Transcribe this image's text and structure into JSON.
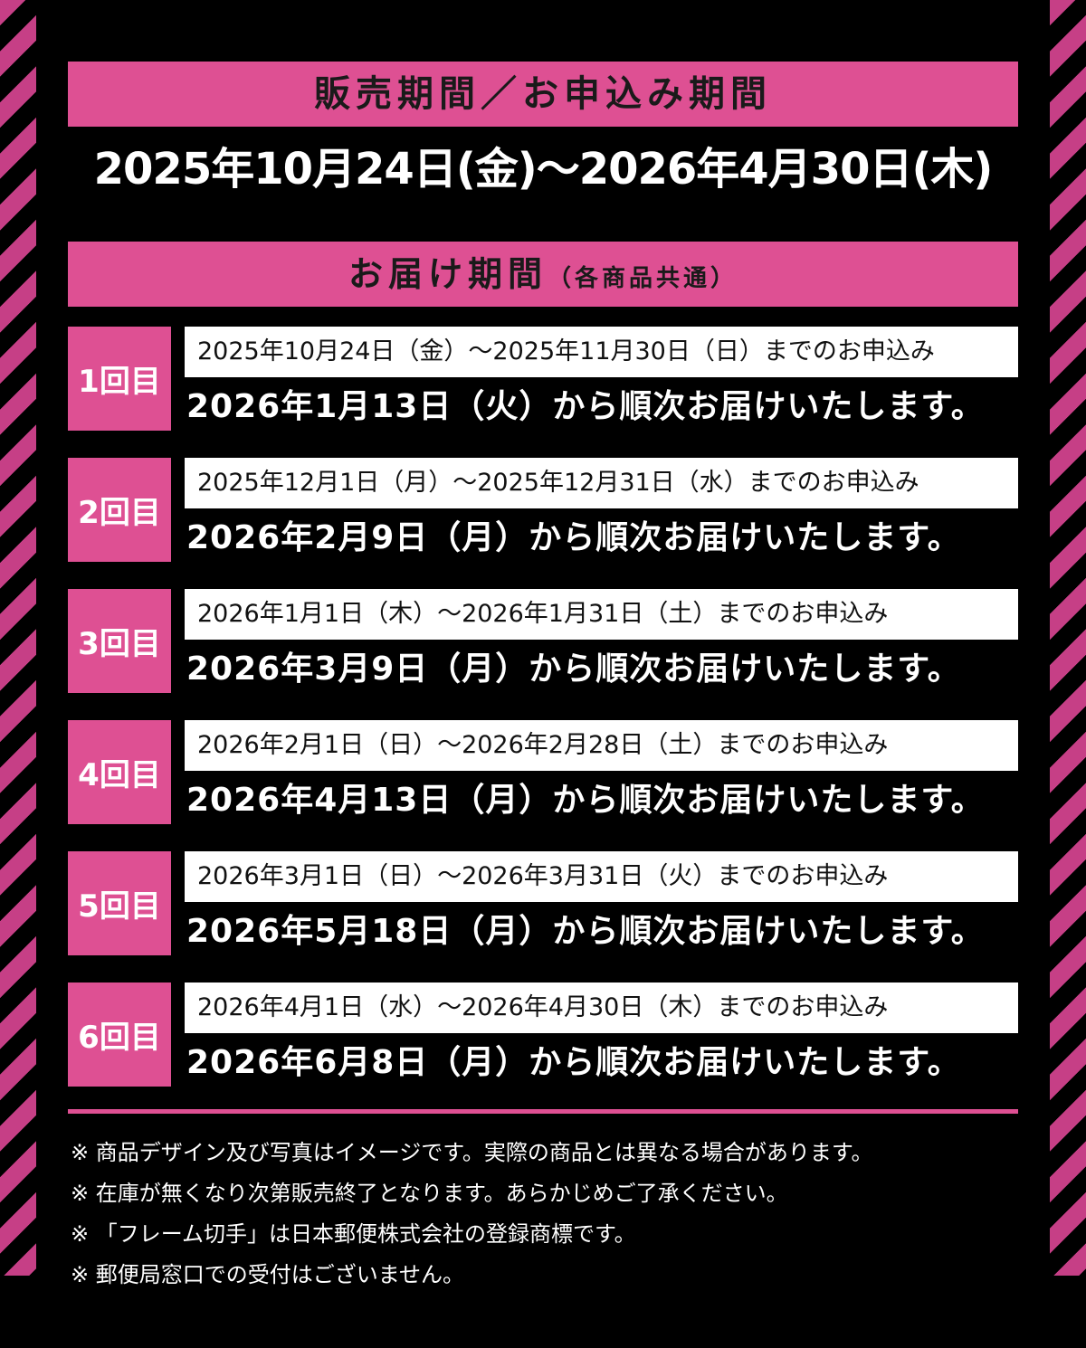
{
  "sales": {
    "heading": "販売期間／お申込み期間",
    "period": "2025年10月24日(金)〜2026年4月30日(木)"
  },
  "delivery": {
    "heading": "お届け期間",
    "heading_note": "（各商品共通）",
    "rows": [
      {
        "label": "1回目",
        "apply": "2025年10月24日（金）〜2025年11月30日（日）までのお申込み",
        "deliver": "2026年1月13日（火）から順次お届けいたします。"
      },
      {
        "label": "2回目",
        "apply": "2025年12月1日（月）〜2025年12月31日（水）までのお申込み",
        "deliver": "2026年2月9日（月）から順次お届けいたします。"
      },
      {
        "label": "3回目",
        "apply": "2026年1月1日（木）〜2026年1月31日（土）までのお申込み",
        "deliver": "2026年3月9日（月）から順次お届けいたします。"
      },
      {
        "label": "4回目",
        "apply": "2026年2月1日（日）〜2026年2月28日（土）までのお申込み",
        "deliver": "2026年4月13日（月）から順次お届けいたします。"
      },
      {
        "label": "5回目",
        "apply": "2026年3月1日（日）〜2026年3月31日（火）までのお申込み",
        "deliver": "2026年5月18日（月）から順次お届けいたします。"
      },
      {
        "label": "6回目",
        "apply": "2026年4月1日（水）〜2026年4月30日（木）までのお申込み",
        "deliver": "2026年6月8日（月）から順次お届けいたします。"
      }
    ]
  },
  "notes": [
    "※ 商品デザイン及び写真はイメージです。実際の商品とは異なる場合があります。",
    "※ 在庫が無くなり次第販売終了となります。あらかじめご了承ください。",
    "※ 「フレーム切手」は日本郵便株式会社の登録商標です。",
    "※ 郵便局窓口での受付はございません。"
  ],
  "colors": {
    "accent": "#de5093",
    "background": "#000000",
    "stripe": "#c63f86"
  }
}
